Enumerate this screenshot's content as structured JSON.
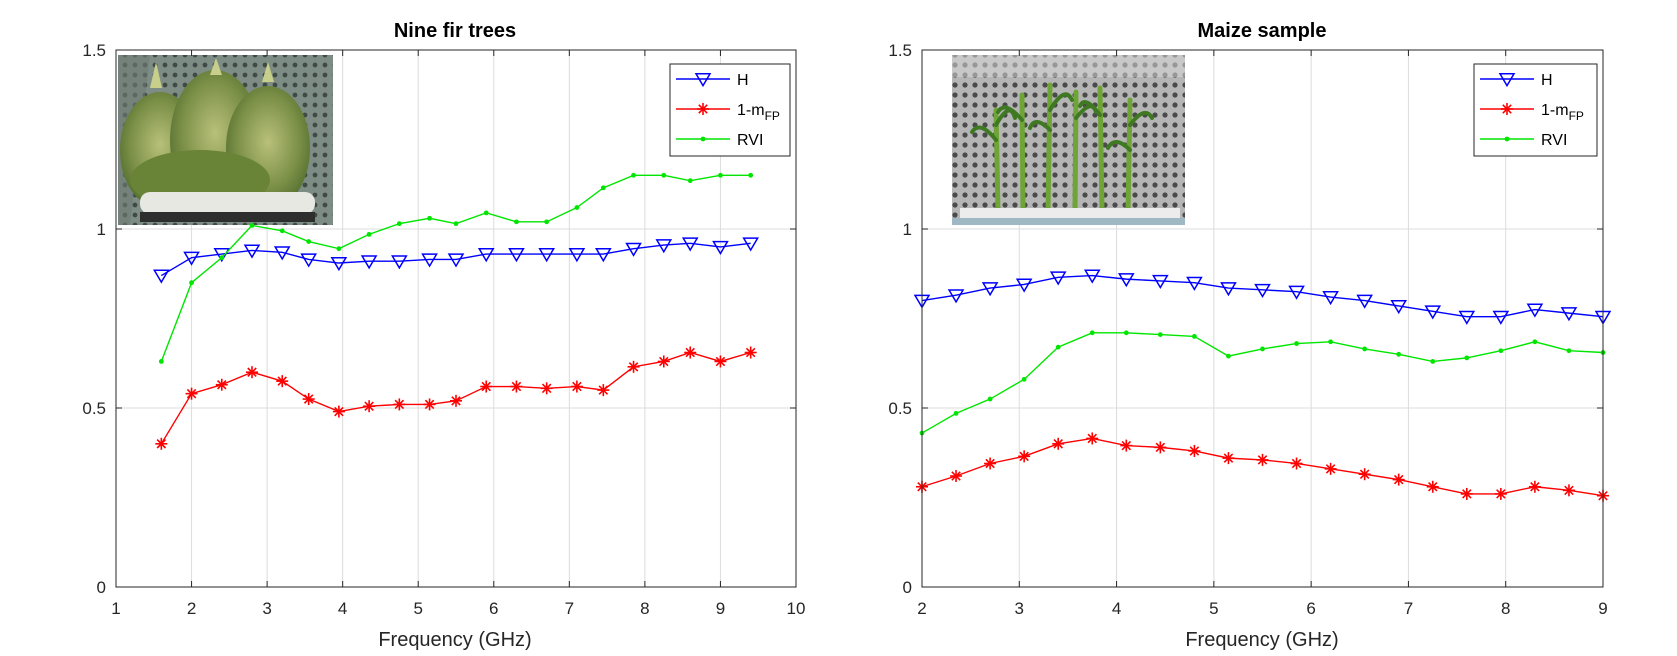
{
  "colors": {
    "H": "#0000ff",
    "one_minus_mfp": "#ff0000",
    "RVI": "#00e600",
    "grid": "#dcdcdc",
    "axis": "#262626"
  },
  "legend_entries": [
    {
      "key": "H",
      "label": "H",
      "sub": "",
      "marker": "triangle-down"
    },
    {
      "key": "one_minus_mfp",
      "label": "1-m",
      "sub": "FP",
      "marker": "asterisk"
    },
    {
      "key": "RVI",
      "label": "RVI",
      "sub": "",
      "marker": "dot"
    }
  ],
  "chart_data": [
    {
      "type": "line",
      "title": "Nine fir trees",
      "xlabel": "Frequency (GHz)",
      "ylabel": "",
      "xlim": [
        1,
        10
      ],
      "ylim": [
        0,
        1.5
      ],
      "xticks": [
        1,
        2,
        3,
        4,
        5,
        6,
        7,
        8,
        9,
        10
      ],
      "yticks": [
        0,
        0.5,
        1,
        1.5
      ],
      "ytick_labels": [
        "0",
        "0.5",
        "1",
        "1.5"
      ],
      "grid": true,
      "legend": "top-right",
      "inset_photo": "fir-trees-photo",
      "x": [
        1.6,
        2.0,
        2.4,
        2.8,
        3.2,
        3.55,
        3.95,
        4.35,
        4.75,
        5.15,
        5.5,
        5.9,
        6.3,
        6.7,
        7.1,
        7.45,
        7.85,
        8.25,
        8.6,
        9.0,
        9.4
      ],
      "series": [
        {
          "name": "H",
          "values": [
            0.87,
            0.92,
            0.93,
            0.94,
            0.935,
            0.915,
            0.905,
            0.91,
            0.91,
            0.915,
            0.915,
            0.93,
            0.93,
            0.93,
            0.93,
            0.93,
            0.945,
            0.955,
            0.96,
            0.95,
            0.96
          ]
        },
        {
          "name": "1-mFP",
          "values": [
            0.4,
            0.54,
            0.565,
            0.6,
            0.575,
            0.525,
            0.49,
            0.505,
            0.51,
            0.51,
            0.52,
            0.56,
            0.56,
            0.555,
            0.56,
            0.55,
            0.615,
            0.63,
            0.655,
            0.63,
            0.655
          ]
        },
        {
          "name": "RVI",
          "values": [
            0.63,
            0.85,
            0.92,
            1.01,
            0.995,
            0.965,
            0.945,
            0.985,
            1.015,
            1.03,
            1.015,
            1.045,
            1.02,
            1.02,
            1.06,
            1.115,
            1.15,
            1.15,
            1.135,
            1.15,
            1.15
          ]
        }
      ]
    },
    {
      "type": "line",
      "title": "Maize sample",
      "xlabel": "Frequency (GHz)",
      "ylabel": "",
      "xlim": [
        2,
        9
      ],
      "ylim": [
        0,
        1.5
      ],
      "xticks": [
        2,
        3,
        4,
        5,
        6,
        7,
        8,
        9
      ],
      "yticks": [
        0,
        0.5,
        1,
        1.5
      ],
      "ytick_labels": [
        "0",
        "0.5",
        "1",
        "1.5"
      ],
      "grid": true,
      "legend": "top-right",
      "inset_photo": "maize-photo",
      "x": [
        2.0,
        2.35,
        2.7,
        3.05,
        3.4,
        3.75,
        4.1,
        4.45,
        4.8,
        5.15,
        5.5,
        5.85,
        6.2,
        6.55,
        6.9,
        7.25,
        7.6,
        7.95,
        8.3,
        8.65,
        9.0
      ],
      "series": [
        {
          "name": "H",
          "values": [
            0.8,
            0.815,
            0.835,
            0.845,
            0.865,
            0.87,
            0.86,
            0.855,
            0.85,
            0.835,
            0.83,
            0.825,
            0.81,
            0.8,
            0.785,
            0.77,
            0.755,
            0.755,
            0.775,
            0.765,
            0.755
          ]
        },
        {
          "name": "1-mFP",
          "values": [
            0.28,
            0.31,
            0.345,
            0.365,
            0.4,
            0.415,
            0.395,
            0.39,
            0.38,
            0.36,
            0.355,
            0.345,
            0.33,
            0.315,
            0.3,
            0.28,
            0.26,
            0.26,
            0.28,
            0.27,
            0.255
          ]
        },
        {
          "name": "RVI",
          "values": [
            0.43,
            0.485,
            0.525,
            0.58,
            0.67,
            0.71,
            0.71,
            0.705,
            0.7,
            0.645,
            0.665,
            0.68,
            0.685,
            0.665,
            0.65,
            0.63,
            0.64,
            0.66,
            0.685,
            0.66,
            0.655
          ]
        }
      ]
    }
  ]
}
